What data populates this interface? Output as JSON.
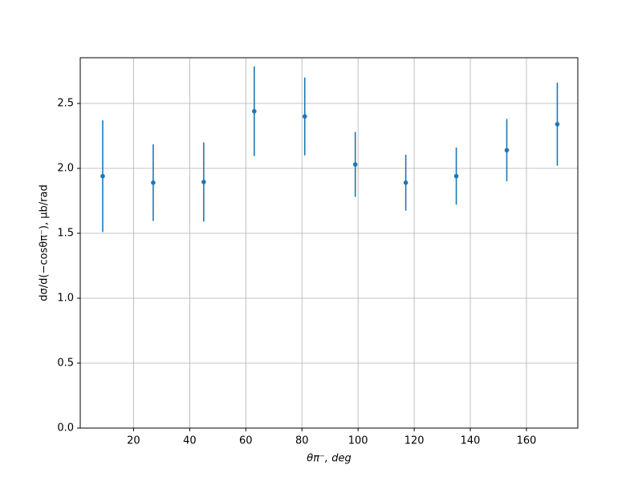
{
  "chart_data": {
    "type": "errorbar",
    "xlabel": "θπ⁻, deg",
    "ylabel": "dσ/d(−cosθπ⁻), μb/rad",
    "x": [
      9,
      27,
      45,
      63,
      81,
      99,
      117,
      135,
      153,
      171
    ],
    "series": [
      {
        "color": "#1f77b4",
        "values": [
          1.94,
          1.89,
          1.895,
          2.44,
          2.4,
          2.03,
          1.89,
          1.94,
          2.14,
          2.34
        ],
        "errors": [
          0.43,
          0.295,
          0.305,
          0.345,
          0.3,
          0.25,
          0.215,
          0.22,
          0.24,
          0.32
        ]
      }
    ],
    "xlim": [
      1,
      178.3
    ],
    "ylim": [
      0,
      2.852
    ],
    "xticks": [
      20,
      40,
      60,
      80,
      100,
      120,
      140,
      160
    ],
    "yticks": [
      {
        "value": 0,
        "label": "0.0"
      },
      {
        "value": 0.5,
        "label": "0.5"
      },
      {
        "value": 1,
        "label": "1.0"
      },
      {
        "value": 1.5,
        "label": "1.5"
      },
      {
        "value": 2,
        "label": "2.0"
      },
      {
        "value": 2.5,
        "label": "2.5"
      }
    ],
    "grid": true
  }
}
